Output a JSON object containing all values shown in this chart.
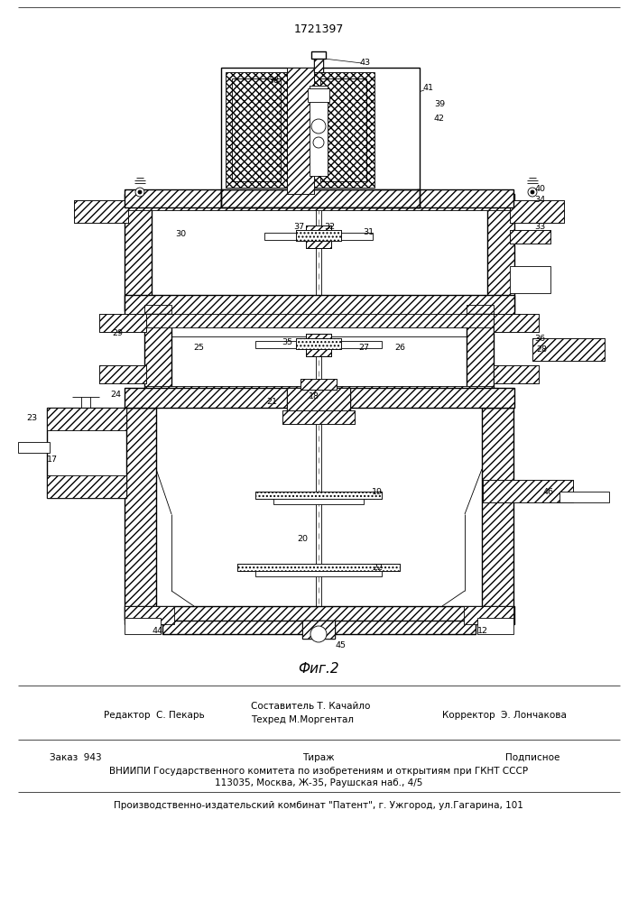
{
  "patent_number": "1721397",
  "figure_label": "Фиг.2",
  "bg_color": "#ffffff",
  "line_color": "#000000",
  "editor_line": "Редактор  С. Пекарь",
  "composer_line": "Составитель Т. Качайло",
  "techred_line": "Техред М.Моргентал",
  "corrector_line": "Корректор  Э. Лончакова",
  "order_line": "Заказ  943",
  "tirazh_line": "Тираж",
  "podpisnoe_line": "Подписное",
  "vniipи_line": "ВНИИПИ Государственного комитета по изобретениям и открытиям при ГКНТ СССР",
  "address_line": "113035, Москва, Ж-35, Раушская наб., 4/5",
  "factory_line": "Производственно-издательский комбинат \"Патент\", г. Ужгород, ул.Гагарина, 101"
}
